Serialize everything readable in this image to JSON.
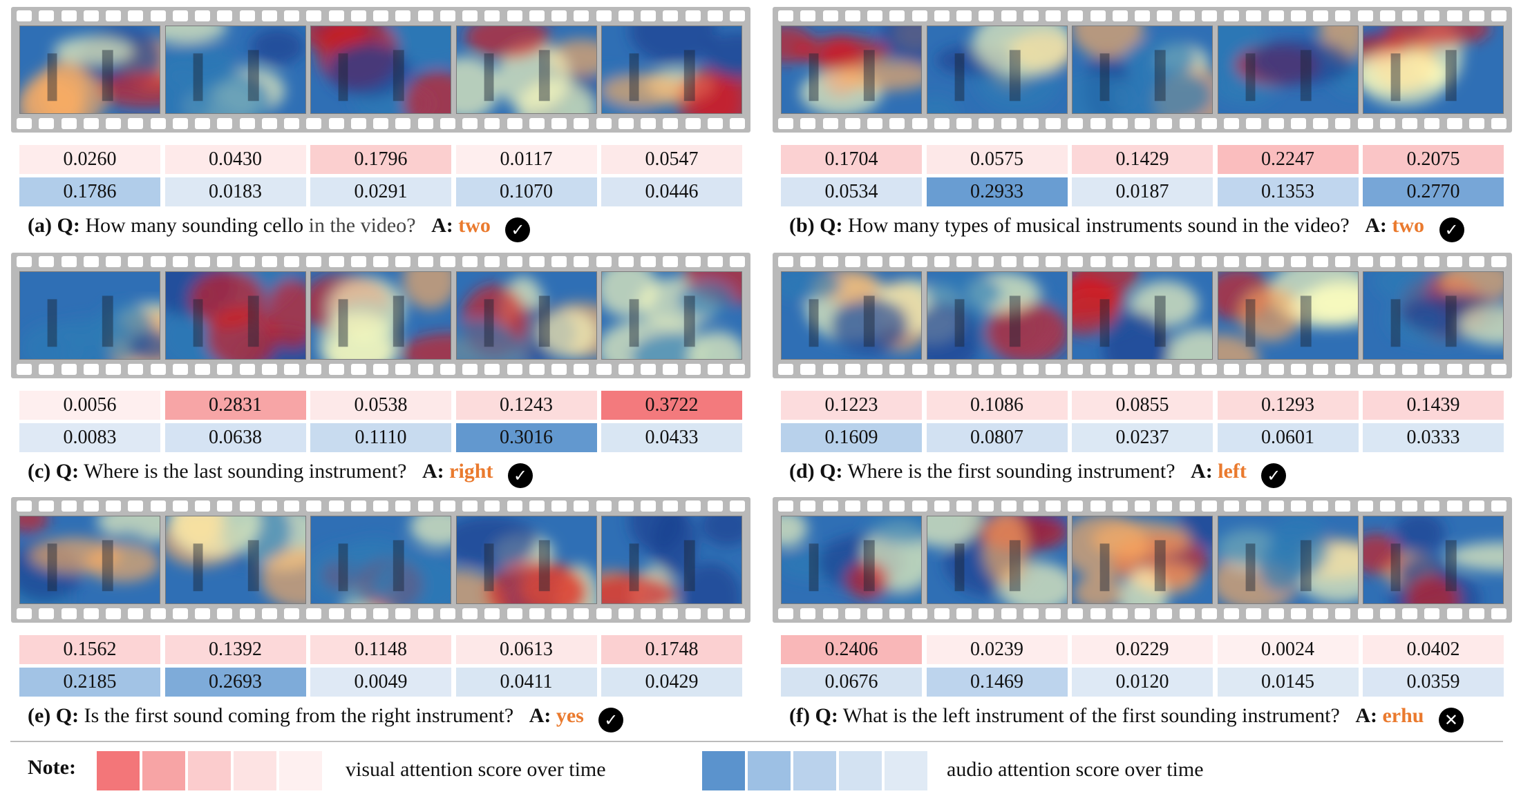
{
  "colors": {
    "answer": "#ea7a2e",
    "visual_scale": [
      "#f37679",
      "#f7a4a5",
      "#fbcccd",
      "#fde3e3",
      "#fef0f0"
    ],
    "audio_scale": [
      "#5b93cd",
      "#9dc0e4",
      "#bad2ec",
      "#d3e2f2",
      "#e0eaf5"
    ]
  },
  "panels": [
    {
      "label": "(a)",
      "q_label": "Q:",
      "question": "How many sounding cello",
      "question_gray": "in the video?",
      "a_label": "A:",
      "answer": "two",
      "mark": "✓",
      "mark_icon": "check-icon",
      "visual": [
        "0.0260",
        "0.0430",
        "0.1796",
        "0.0117",
        "0.0547"
      ],
      "audio": [
        "0.1786",
        "0.0183",
        "0.0291",
        "0.1070",
        "0.0446"
      ]
    },
    {
      "label": "(b)",
      "q_label": "Q:",
      "question": "How many types of musical instruments sound in the video?",
      "question_gray": "",
      "a_label": "A:",
      "answer": "two",
      "mark": "✓",
      "mark_icon": "check-icon",
      "visual": [
        "0.1704",
        "0.0575",
        "0.1429",
        "0.2247",
        "0.2075"
      ],
      "audio": [
        "0.0534",
        "0.2933",
        "0.0187",
        "0.1353",
        "0.2770"
      ]
    },
    {
      "label": "(c)",
      "q_label": "Q:",
      "question": "Where is the last sounding instrument?",
      "question_gray": "",
      "a_label": "A:",
      "answer": "right",
      "mark": "✓",
      "mark_icon": "check-icon",
      "visual": [
        "0.0056",
        "0.2831",
        "0.0538",
        "0.1243",
        "0.3722"
      ],
      "audio": [
        "0.0083",
        "0.0638",
        "0.1110",
        "0.3016",
        "0.0433"
      ]
    },
    {
      "label": "(d)",
      "q_label": "Q:",
      "question": "Where is the first sounding instrument?",
      "question_gray": "",
      "a_label": "A:",
      "answer": "left",
      "mark": "✓",
      "mark_icon": "check-icon",
      "visual": [
        "0.1223",
        "0.1086",
        "0.0855",
        "0.1293",
        "0.1439"
      ],
      "audio": [
        "0.1609",
        "0.0807",
        "0.0237",
        "0.0601",
        "0.0333"
      ]
    },
    {
      "label": "(e)",
      "q_label": "Q:",
      "question": "Is the first sound coming from the right instrument?",
      "question_gray": "",
      "a_label": "A:",
      "answer": "yes",
      "mark": "✓",
      "mark_icon": "check-icon",
      "visual": [
        "0.1562",
        "0.1392",
        "0.1148",
        "0.0613",
        "0.1748"
      ],
      "audio": [
        "0.2185",
        "0.2693",
        "0.0049",
        "0.0411",
        "0.0429"
      ]
    },
    {
      "label": "(f)",
      "q_label": "Q:",
      "question": "What is the left instrument of the first sounding instrument?",
      "question_gray": "",
      "a_label": "A:",
      "answer": "erhu",
      "mark": "✕",
      "mark_icon": "cross-icon",
      "visual": [
        "0.2406",
        "0.0239",
        "0.0229",
        "0.0024",
        "0.0402"
      ],
      "audio": [
        "0.0676",
        "0.1469",
        "0.0120",
        "0.0145",
        "0.0359"
      ]
    }
  ],
  "note": {
    "label": "Note:",
    "visual_text": "visual attention score over time",
    "audio_text": "audio attention score over time"
  }
}
